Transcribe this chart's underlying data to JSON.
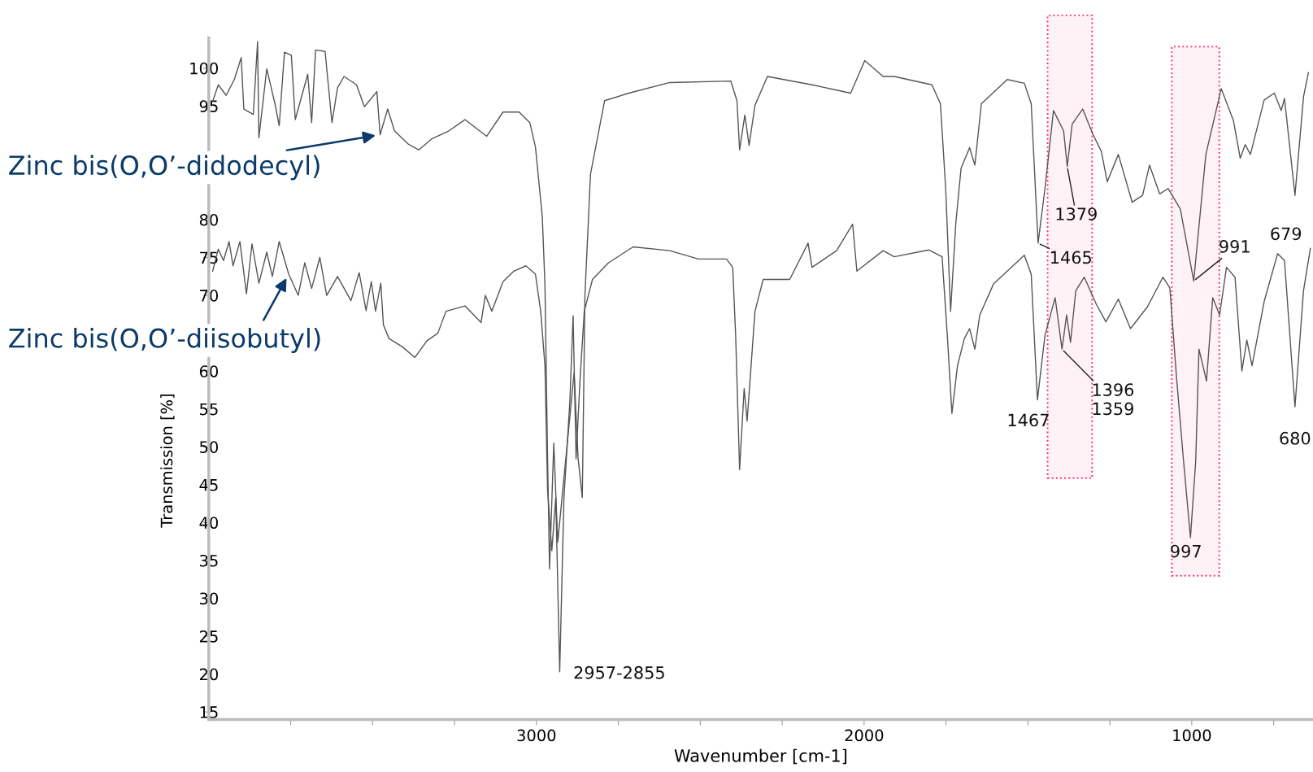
{
  "chart_data": {
    "type": "line",
    "xlabel": "Wavenumber [cm-1]",
    "ylabel": "Transmission [%]",
    "xlim": [
      4000,
      630
    ],
    "ylim": [
      14,
      104
    ],
    "xticks": [
      {
        "value": 3750,
        "label": null
      },
      {
        "value": 3500,
        "label": null
      },
      {
        "value": 3250,
        "label": null
      },
      3000,
      {
        "value": 2750,
        "label": null
      },
      {
        "value": 2500,
        "label": null
      },
      {
        "value": 2250,
        "label": null
      },
      2000,
      {
        "value": 1750,
        "label": null
      },
      {
        "value": 1500,
        "label": null
      },
      {
        "value": 1250,
        "label": null
      },
      1000,
      {
        "value": 750,
        "label": null
      }
    ],
    "yticks": [
      15,
      20,
      25,
      30,
      35,
      40,
      45,
      50,
      55,
      60,
      70,
      75,
      80,
      95,
      100
    ],
    "grid": false,
    "legend": false,
    "marker": "none",
    "line_style": "solid",
    "series": [
      {
        "name": "Zinc bis(O,O’-didodecyl)",
        "color": "#555555",
        "x": [
          3988,
          3971,
          3947,
          3922,
          3901,
          3893,
          3864,
          3851,
          3847,
          3823,
          3798,
          3785,
          3769,
          3748,
          3736,
          3698,
          3686,
          3674,
          3645,
          3624,
          3607,
          3587,
          3549,
          3525,
          3487,
          3477,
          3454,
          3433,
          3392,
          3359,
          3318,
          3268,
          3218,
          3152,
          3102,
          3053,
          3020,
          3003,
          2982,
          2974,
          2966,
          2960,
          2947,
          2935,
          2885,
          2873,
          2860,
          2852,
          2835,
          2792,
          2718,
          2593,
          2407,
          2388,
          2380,
          2364,
          2351,
          2333,
          2295,
          2159,
          2041,
          1998,
          1942,
          1908,
          1793,
          1767,
          1751,
          1736,
          1720,
          1704,
          1678,
          1662,
          1642,
          1563,
          1511,
          1490,
          1469,
          1448,
          1422,
          1391,
          1380,
          1365,
          1333,
          1302,
          1276,
          1258,
          1224,
          1182,
          1150,
          1129,
          1098,
          1072,
          1035,
          994,
          957,
          910,
          873,
          852,
          837,
          821,
          779,
          748,
          727,
          717,
          685,
          659,
          644
        ],
        "values": [
          95.6,
          97.8,
          96.4,
          98.5,
          101.4,
          94.6,
          93.9,
          103.5,
          90.8,
          99.9,
          95.3,
          92.4,
          102.1,
          101.7,
          93.2,
          99.2,
          92.8,
          102.4,
          102.2,
          92.8,
          97.4,
          98.9,
          97.8,
          94.9,
          96.9,
          91.2,
          94.6,
          91.7,
          90.0,
          89.2,
          90.7,
          91.7,
          93.2,
          91.0,
          94.2,
          94.2,
          92.8,
          89.6,
          80.3,
          71.4,
          48.6,
          33.9,
          50.5,
          37.4,
          59.8,
          48.6,
          43.3,
          70.0,
          86.0,
          95.7,
          96.7,
          98.1,
          98.3,
          95.7,
          89.2,
          93.8,
          89.8,
          95.1,
          98.9,
          97.8,
          96.7,
          101.0,
          98.9,
          98.9,
          97.8,
          95.3,
          84.1,
          67.9,
          79.6,
          86.8,
          89.5,
          87.2,
          95.3,
          98.5,
          98.0,
          95.3,
          76.9,
          84.1,
          94.4,
          91.7,
          87.0,
          92.6,
          94.6,
          91.3,
          89.0,
          85.0,
          88.6,
          82.3,
          83.2,
          87.2,
          83.4,
          84.1,
          81.4,
          71.9,
          88.6,
          97.3,
          93.1,
          88.1,
          89.9,
          88.6,
          95.8,
          96.7,
          94.4,
          96.0,
          83.2,
          96.2,
          99.4
        ]
      },
      {
        "name": "Zinc bis(O,O’-diisobutyl)",
        "color": "#555555",
        "x": [
          3988,
          3971,
          3955,
          3938,
          3926,
          3905,
          3885,
          3868,
          3847,
          3823,
          3806,
          3785,
          3756,
          3727,
          3707,
          3686,
          3661,
          3640,
          3607,
          3566,
          3541,
          3520,
          3504,
          3491,
          3475,
          3467,
          3450,
          3409,
          3371,
          3334,
          3301,
          3276,
          3218,
          3169,
          3156,
          3136,
          3102,
          3069,
          3032,
          3003,
          2987,
          2974,
          2966,
          2953,
          2941,
          2929,
          2916,
          2898,
          2888,
          2879,
          2867,
          2854,
          2829,
          2780,
          2705,
          2593,
          2506,
          2420,
          2401,
          2392,
          2380,
          2366,
          2357,
          2333,
          2308,
          2227,
          2171,
          2159,
          2084,
          2035,
          2022,
          1942,
          1908,
          1803,
          1762,
          1746,
          1732,
          1715,
          1694,
          1678,
          1662,
          1647,
          1605,
          1511,
          1490,
          1471,
          1448,
          1417,
          1396,
          1382,
          1370,
          1354,
          1328,
          1291,
          1262,
          1224,
          1187,
          1135,
          1088,
          1067,
          1046,
          1025,
          1004,
          988,
          978,
          955,
          936,
          915,
          894,
          868,
          847,
          832,
          816,
          779,
          738,
          717,
          685,
          659,
          638
        ],
        "values": [
          73.2,
          76.1,
          74.6,
          77.1,
          73.9,
          77.1,
          70.2,
          76.8,
          71.6,
          75.7,
          72.5,
          77.1,
          72.8,
          70.0,
          74.3,
          70.9,
          75.0,
          70.0,
          72.5,
          69.3,
          73.0,
          68.0,
          71.8,
          67.9,
          71.6,
          66.1,
          64.3,
          63.2,
          61.8,
          64.0,
          65.0,
          67.9,
          68.6,
          66.4,
          70.0,
          67.9,
          71.8,
          73.2,
          73.9,
          72.8,
          67.9,
          60.7,
          44.3,
          36.3,
          43.3,
          20.3,
          43.3,
          56.0,
          67.3,
          48.4,
          58.8,
          67.9,
          72.1,
          74.3,
          76.4,
          75.9,
          74.8,
          74.8,
          73.7,
          64.7,
          47.0,
          57.7,
          53.4,
          67.9,
          72.1,
          72.1,
          76.9,
          73.7,
          75.9,
          79.4,
          73.2,
          75.9,
          75.1,
          76.0,
          75.1,
          64.7,
          54.4,
          60.7,
          64.3,
          65.6,
          62.9,
          67.4,
          71.5,
          75.3,
          72.8,
          56.2,
          64.7,
          69.7,
          62.9,
          67.4,
          63.8,
          70.6,
          72.4,
          68.8,
          66.5,
          69.5,
          65.6,
          68.5,
          72.4,
          71.0,
          58.9,
          48.1,
          38.0,
          48.1,
          62.9,
          58.7,
          69.7,
          67.4,
          73.7,
          72.4,
          60.0,
          64.1,
          60.7,
          69.2,
          75.5,
          74.6,
          55.3,
          70.6,
          76.2
        ]
      }
    ],
    "annotations": [
      {
        "text": "2957-2855",
        "x": 2929,
        "y": 20.3
      },
      {
        "text": "1379",
        "x": 1380,
        "y": 87.0
      },
      {
        "text": "1465",
        "x": 1469,
        "y": 76.9
      },
      {
        "text": "991",
        "x": 994,
        "y": 71.9
      },
      {
        "text": "679",
        "x": 685,
        "y": 83.2
      },
      {
        "text": "1467",
        "x": 1471,
        "y": 56.2
      },
      {
        "text": "1396\n1359",
        "x": 1396,
        "y": 62.9
      },
      {
        "text": "997",
        "x": 1004,
        "y": 38.0
      },
      {
        "text": "680",
        "x": 685,
        "y": 55.3
      }
    ],
    "bands": [
      {
        "axis": "x",
        "from": 1440,
        "to": 1304,
        "color": "#ff2a6d"
      },
      {
        "axis": "x",
        "from": 1061,
        "to": 916,
        "color": "#ff2a6d"
      }
    ]
  }
}
